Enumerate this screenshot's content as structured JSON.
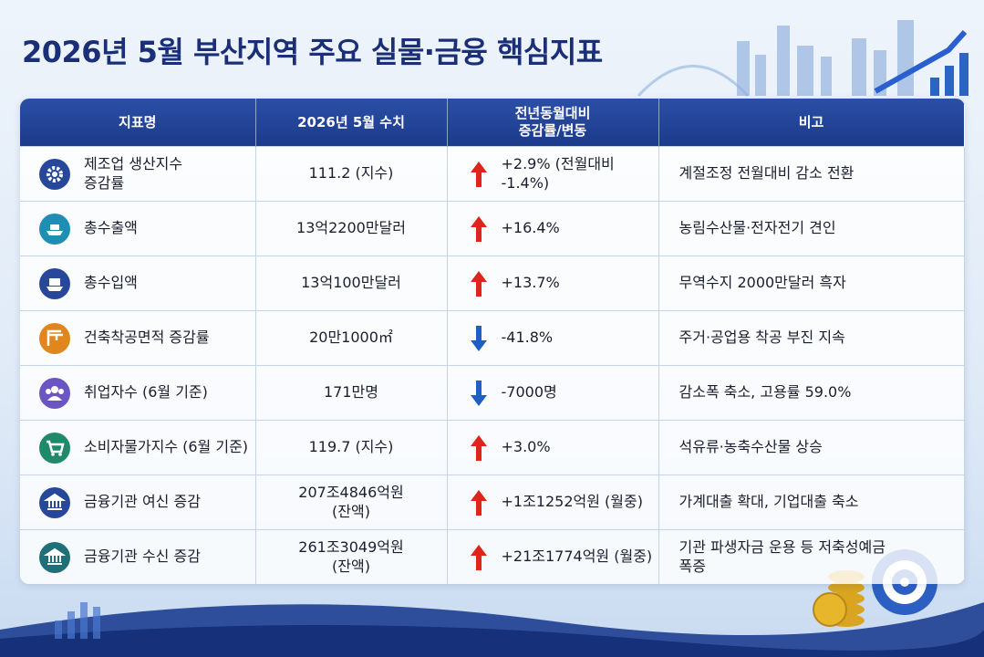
{
  "header": {
    "title": "2026년 5월 부산지역 주요 실물·금융 핵심지표"
  },
  "table": {
    "columns": [
      "지표명",
      "2026년 5월 수치",
      "전년동월대비\n증감률/변동",
      "비고"
    ],
    "rows": [
      [
        "제조업 생산지수\n증감률",
        "111.2 (지수)",
        "+2.9% (전월대비\n-1.4%)",
        "계절조정 전월대비 감소 전환"
      ],
      [
        "총수출액",
        "13억2200만달러",
        "+16.4%",
        "농림수산물·전자전기 견인"
      ],
      [
        "총수입액",
        "13억100만달러",
        "+13.7%",
        "무역수지 2000만달러 흑자"
      ],
      [
        "건축착공면적 증감률",
        "20만1000㎡",
        "-41.8%",
        "주거·공업용 착공 부진 지속"
      ],
      [
        "취업자수 (6월 기준)",
        "171만명",
        "-7000명",
        "감소폭 축소, 고용률 59.0%"
      ],
      [
        "소비자물가지수 (6월 기준)",
        "119.7 (지수)",
        "+3.0%",
        "석유류·농축수산물 상승"
      ],
      [
        "금융기관 여신 증감",
        "207조4846억원\n(잔액)",
        "+1조1252억원 (월중)",
        "가계대출 확대, 기업대출 축소"
      ],
      [
        "금융기관 수신 증감",
        "261조3049억원\n(잔액)",
        "+21조1774억원 (월중)",
        "기관 파생자금 운용 등 저축성예금\n폭증"
      ]
    ]
  }
}
